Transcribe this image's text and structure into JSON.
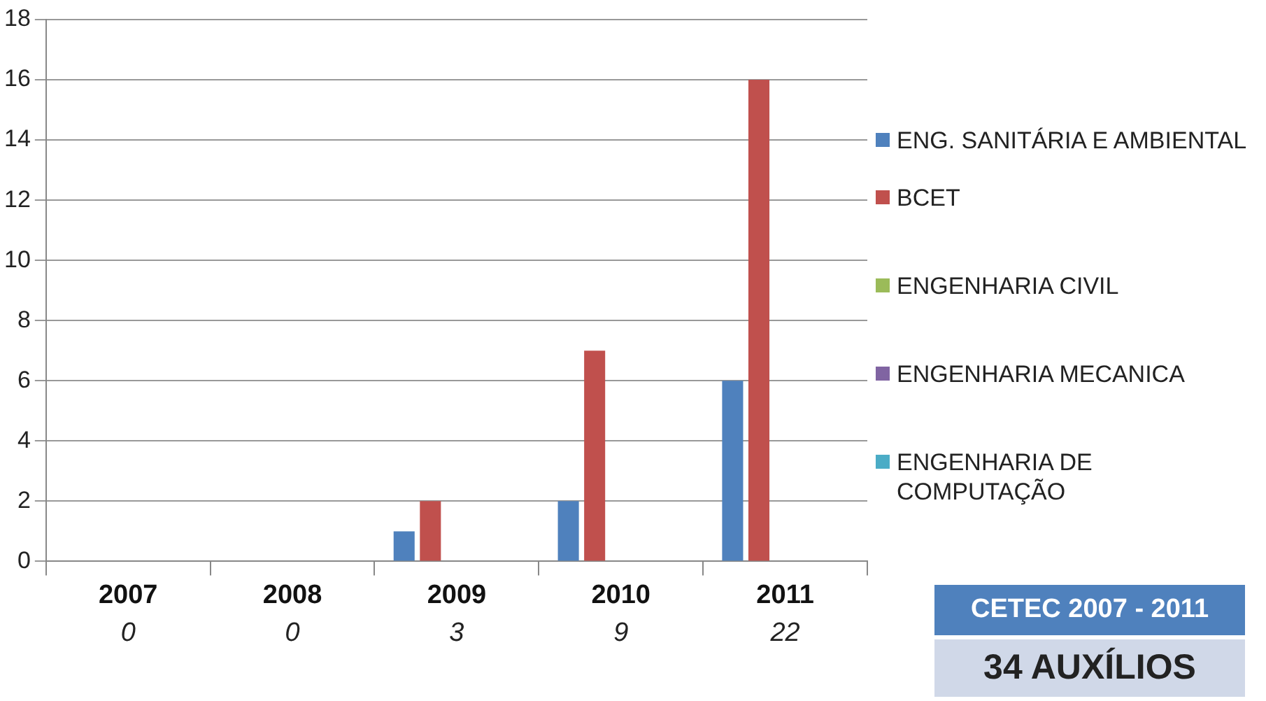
{
  "chart_data": {
    "type": "bar",
    "categories": [
      "2007",
      "2008",
      "2009",
      "2010",
      "2011"
    ],
    "series": [
      {
        "name": "ENG. SANITÁRIA E AMBIENTAL",
        "color": "#4f81bd",
        "values": [
          0,
          0,
          1,
          2,
          6
        ]
      },
      {
        "name": "BCET",
        "color": "#c0504d",
        "values": [
          0,
          0,
          2,
          7,
          16
        ]
      },
      {
        "name": "ENGENHARIA CIVIL",
        "color": "#9bbb59",
        "values": [
          0,
          0,
          0,
          0,
          0
        ]
      },
      {
        "name": "ENGENHARIA MECANICA",
        "color": "#8064a2",
        "values": [
          0,
          0,
          0,
          0,
          0
        ]
      },
      {
        "name": "ENGENHARIA DE COMPUTAÇÃO",
        "color": "#4bacc6",
        "values": [
          0,
          0,
          0,
          0,
          0
        ]
      }
    ],
    "totals": [
      "0",
      "0",
      "3",
      "9",
      "22"
    ],
    "ylim": [
      0,
      18
    ],
    "yticks": [
      0,
      2,
      4,
      6,
      8,
      10,
      12,
      14,
      16,
      18
    ],
    "grid": "y",
    "legend": "right",
    "annotations": [
      "CETEC 2007 - 2011",
      "34 AUXÍLIOS"
    ]
  }
}
